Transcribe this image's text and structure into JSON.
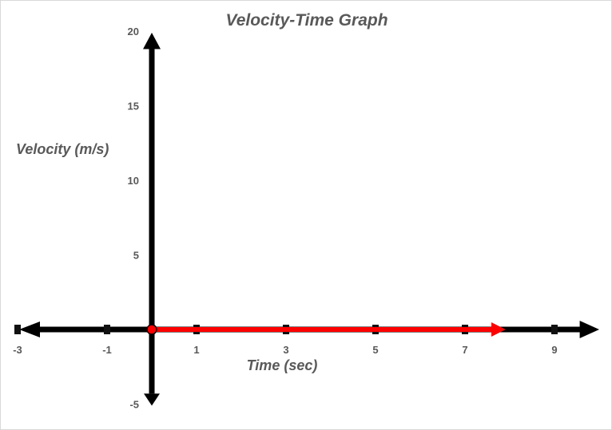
{
  "chart_data": {
    "type": "line",
    "title": "Velocity-Time Graph",
    "xlabel": "Time (sec)",
    "ylabel": "Velocity (m/s)",
    "xlim": [
      -3,
      10
    ],
    "ylim": [
      -5,
      20
    ],
    "x_ticks": [
      -3,
      -1,
      1,
      3,
      5,
      7,
      9
    ],
    "y_ticks": [
      20,
      15,
      10,
      5,
      -5
    ],
    "grid": false,
    "series": [
      {
        "points": [
          [
            0,
            0
          ],
          [
            8,
            0
          ]
        ],
        "color": "#ff0000",
        "start_marker": "circle",
        "end_marker": "arrow"
      }
    ],
    "axis_color": "#000000"
  }
}
